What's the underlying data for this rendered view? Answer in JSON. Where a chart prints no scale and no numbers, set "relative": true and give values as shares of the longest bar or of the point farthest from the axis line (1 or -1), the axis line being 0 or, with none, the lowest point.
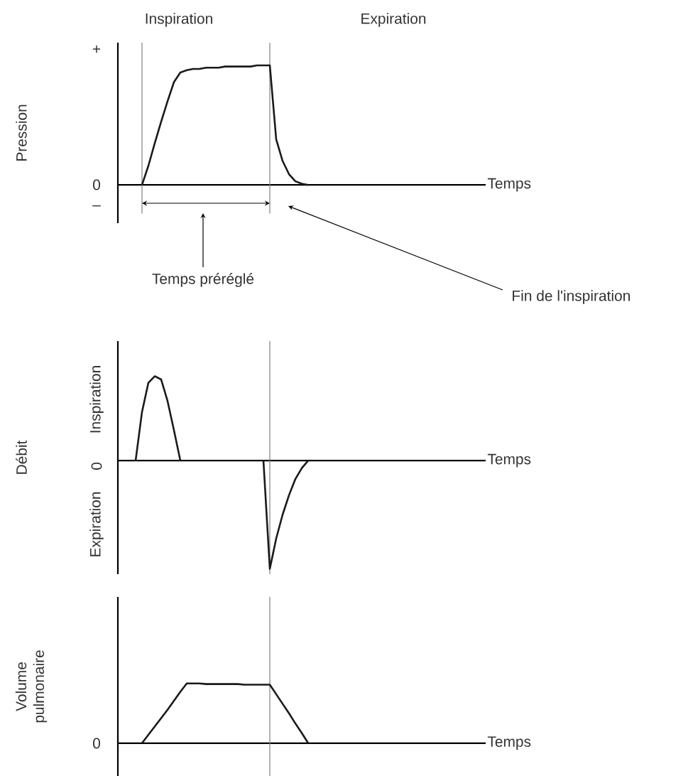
{
  "chart_data": [
    {
      "type": "line",
      "relative": true,
      "categories": [
        null,
        null,
        null,
        null,
        null,
        null,
        null,
        null,
        null,
        null,
        null,
        null,
        null,
        null,
        null,
        null,
        null,
        null,
        null,
        null,
        null,
        null,
        null,
        null,
        null,
        null,
        null,
        null,
        null,
        null,
        null,
        null,
        null,
        null,
        null,
        null,
        null,
        null,
        null,
        null,
        null,
        null,
        null,
        null,
        null,
        null,
        null,
        null,
        null,
        null,
        null,
        null,
        null,
        null,
        null,
        null,
        null
      ],
      "series": [
        {
          "color": "#1a1a1a",
          "values": [
            null,
            null,
            null,
            0,
            0.16,
            0.35,
            0.53,
            0.7,
            0.86,
            0.94,
            0.96,
            0.97,
            0.97,
            0.98,
            0.98,
            0.98,
            0.99,
            0.99,
            0.99,
            0.99,
            0.99,
            1,
            1,
            1,
            0.38,
            0.2,
            0.09,
            0.03,
            0.01,
            0,
            null,
            null,
            null,
            null,
            null,
            null,
            null,
            null,
            null,
            null,
            null,
            null,
            null,
            null,
            null,
            null,
            null,
            null,
            null,
            null,
            null,
            null,
            null,
            null,
            null,
            null,
            null
          ]
        }
      ],
      "xlabel": "Temps",
      "ylabel": "Pression",
      "annotations": [
        "Inspiration",
        "Expiration",
        "+",
        "0",
        "–",
        "Temps préréglé",
        "Fin de l'inspiration"
      ]
    },
    {
      "type": "line",
      "relative": true,
      "categories": [
        null,
        null,
        null,
        null,
        null,
        null,
        null,
        null,
        null,
        null,
        null,
        null,
        null,
        null,
        null,
        null,
        null,
        null,
        null,
        null,
        null,
        null,
        null,
        null,
        null,
        null,
        null,
        null,
        null,
        null,
        null,
        null,
        null,
        null,
        null,
        null,
        null,
        null,
        null,
        null,
        null,
        null,
        null,
        null,
        null,
        null,
        null,
        null,
        null,
        null,
        null,
        null,
        null,
        null,
        null,
        null,
        null
      ],
      "series": [
        {
          "color": "#1a1a1a",
          "values": [
            null,
            null,
            0,
            0.45,
            0.72,
            0.78,
            0.75,
            0.55,
            0.28,
            0,
            null,
            null,
            null,
            null,
            null,
            null,
            null,
            null,
            null,
            null,
            null,
            null,
            0,
            -1,
            -0.72,
            -0.5,
            -0.32,
            -0.17,
            -0.07,
            0,
            null,
            null,
            null,
            null,
            null,
            null,
            null,
            null,
            null,
            null,
            null,
            null,
            null,
            null,
            null,
            null,
            null,
            null,
            null,
            null,
            null,
            null,
            null,
            null,
            null,
            null,
            null
          ]
        }
      ],
      "xlabel": "Temps",
      "ylabel": "Débit",
      "annotations": [
        "Inspiration",
        "0",
        "Expiration"
      ]
    },
    {
      "type": "line",
      "relative": true,
      "categories": [
        null,
        null,
        null,
        null,
        null,
        null,
        null,
        null,
        null,
        null,
        null,
        null,
        null,
        null,
        null,
        null,
        null,
        null,
        null,
        null,
        null,
        null,
        null,
        null,
        null,
        null,
        null,
        null,
        null,
        null,
        null,
        null,
        null,
        null,
        null,
        null,
        null,
        null,
        null,
        null,
        null,
        null,
        null,
        null,
        null,
        null,
        null,
        null,
        null,
        null,
        null,
        null,
        null,
        null,
        null,
        null,
        null
      ],
      "series": [
        {
          "color": "#1a1a1a",
          "values": [
            null,
            null,
            null,
            0,
            0.14,
            0.28,
            0.42,
            0.56,
            0.71,
            0.86,
            1,
            1,
            1,
            0.99,
            0.99,
            0.99,
            0.99,
            0.99,
            0.99,
            0.98,
            0.98,
            0.98,
            0.98,
            0.98,
            0.82,
            0.66,
            0.5,
            0.33,
            0.17,
            0,
            null,
            null,
            null,
            null,
            null,
            null,
            null,
            null,
            null,
            null,
            null,
            null,
            null,
            null,
            null,
            null,
            null,
            null,
            null,
            null,
            null,
            null,
            null,
            null,
            null,
            null,
            null
          ]
        }
      ],
      "xlabel": "Temps",
      "ylabel": "Volume pulmonaire",
      "annotations": [
        "0"
      ]
    }
  ]
}
